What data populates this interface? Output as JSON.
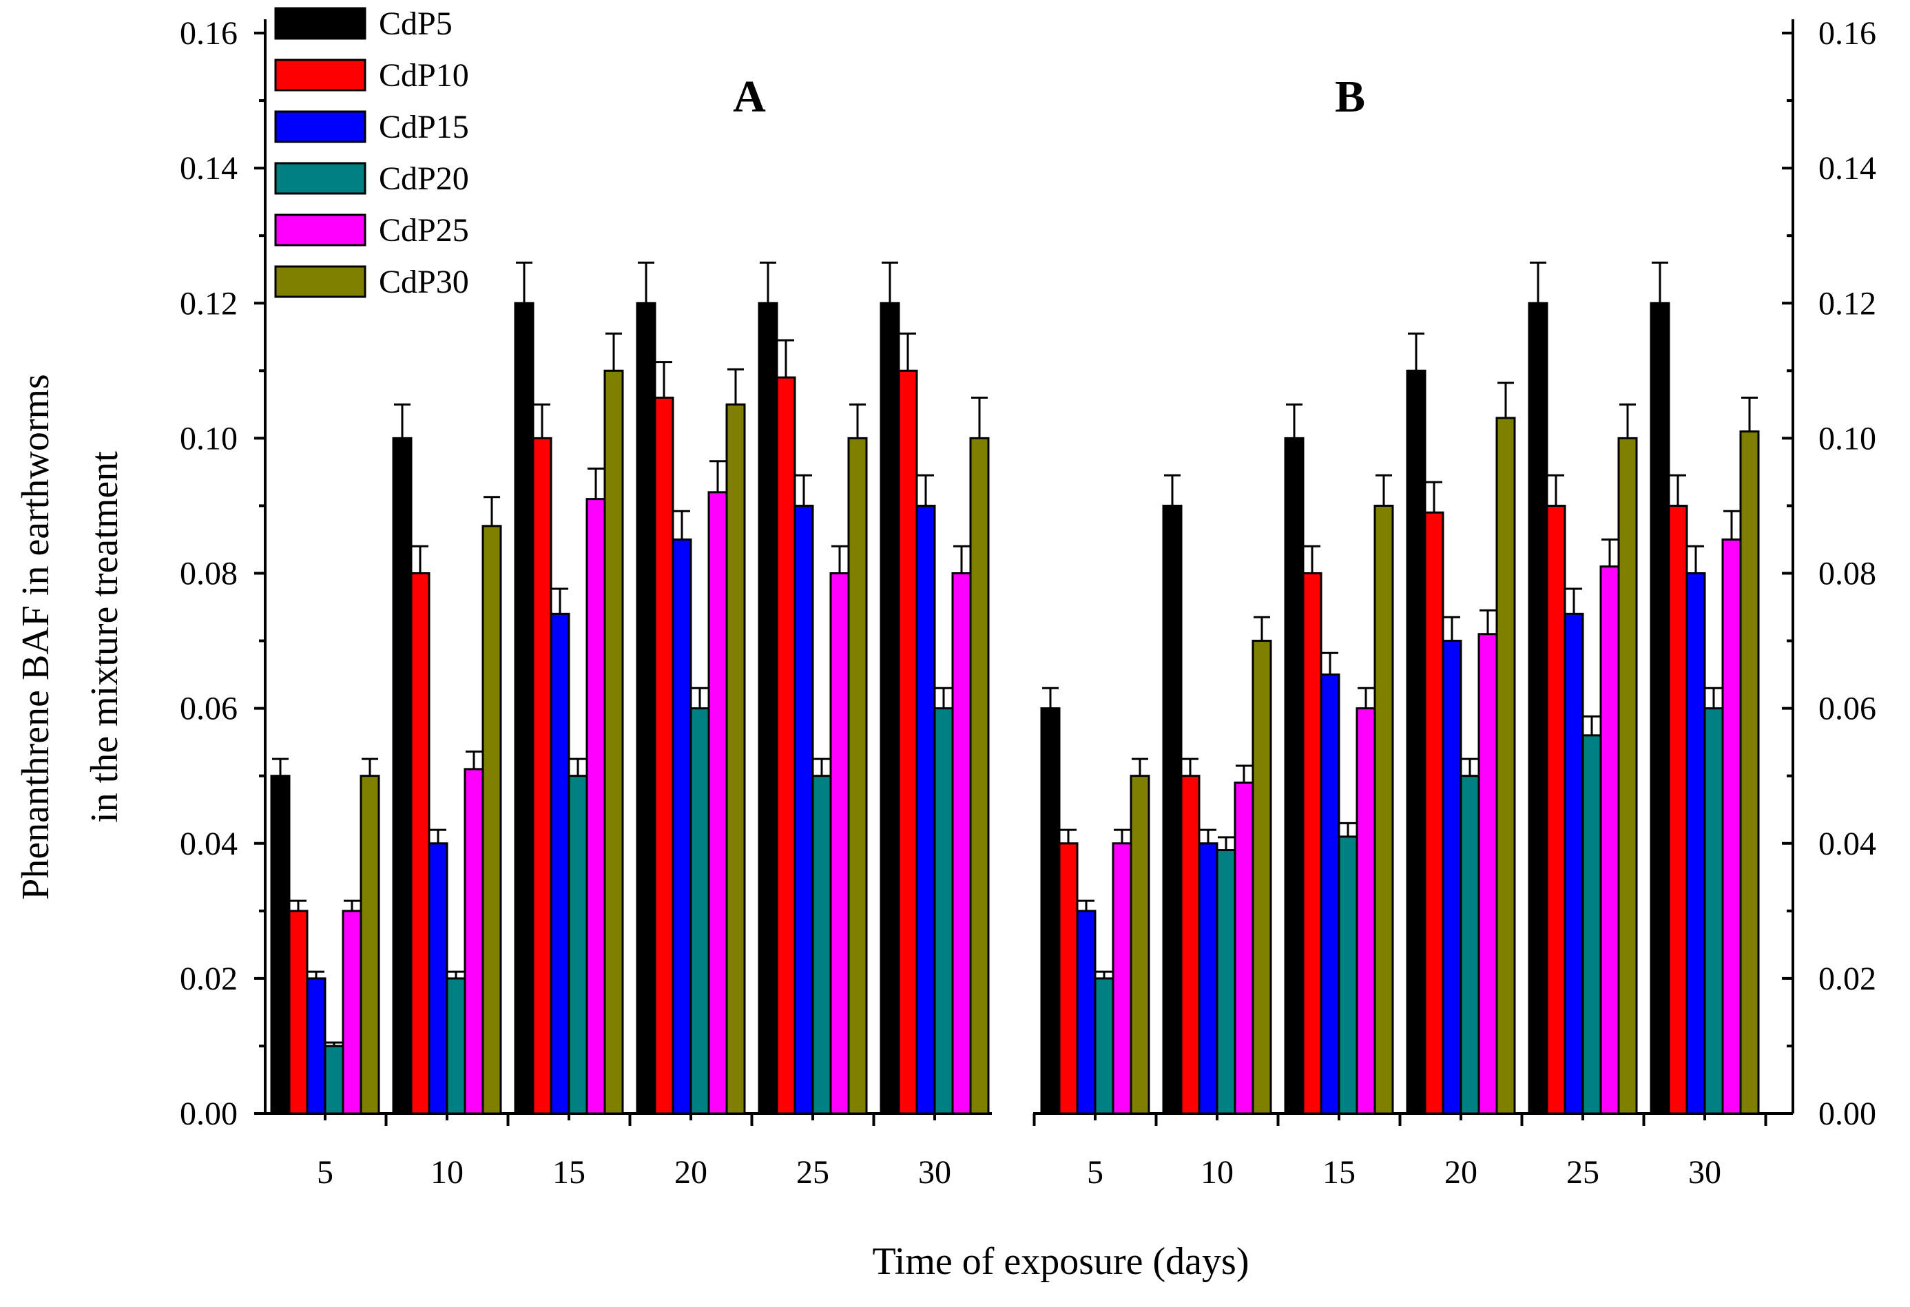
{
  "chart_data": {
    "type": "bar",
    "ylabel_line1": "Phenanthrene BAF in earthworms",
    "ylabel_line2": "in the mixture treatment",
    "xlabel": "Time of exposure (days)",
    "ylim": [
      0,
      0.16
    ],
    "yticks": [
      "0.00",
      "0.02",
      "0.04",
      "0.06",
      "0.08",
      "0.10",
      "0.12",
      "0.14",
      "0.16"
    ],
    "categories": [
      "5",
      "10",
      "15",
      "20",
      "25",
      "30"
    ],
    "legend": [
      {
        "name": "CdP5",
        "color": "#000000"
      },
      {
        "name": "CdP10",
        "color": "#ff0000"
      },
      {
        "name": "CdP15",
        "color": "#0000ff"
      },
      {
        "name": "CdP20",
        "color": "#008080"
      },
      {
        "name": "CdP25",
        "color": "#ff00ff"
      },
      {
        "name": "CdP30",
        "color": "#808000"
      }
    ],
    "panels": [
      {
        "label": "A",
        "series": [
          {
            "name": "CdP5",
            "values": [
              0.05,
              0.1,
              0.12,
              0.12,
              0.12,
              0.12
            ],
            "errors": [
              0.0025,
              0.005,
              0.006,
              0.006,
              0.006,
              0.006
            ]
          },
          {
            "name": "CdP10",
            "values": [
              0.03,
              0.08,
              0.1,
              0.106,
              0.109,
              0.11
            ],
            "errors": [
              0.0015,
              0.004,
              0.005,
              0.0053,
              0.0055,
              0.0055
            ]
          },
          {
            "name": "CdP15",
            "values": [
              0.02,
              0.04,
              0.074,
              0.085,
              0.09,
              0.09
            ],
            "errors": [
              0.001,
              0.002,
              0.0037,
              0.0042,
              0.0045,
              0.0045
            ]
          },
          {
            "name": "CdP20",
            "values": [
              0.01,
              0.02,
              0.05,
              0.06,
              0.05,
              0.06
            ],
            "errors": [
              0.0005,
              0.001,
              0.0025,
              0.003,
              0.0025,
              0.003
            ]
          },
          {
            "name": "CdP25",
            "values": [
              0.03,
              0.051,
              0.091,
              0.092,
              0.08,
              0.08
            ],
            "errors": [
              0.0015,
              0.0026,
              0.0045,
              0.0046,
              0.004,
              0.004
            ]
          },
          {
            "name": "CdP30",
            "values": [
              0.05,
              0.087,
              0.11,
              0.105,
              0.1,
              0.1
            ],
            "errors": [
              0.0025,
              0.0043,
              0.0055,
              0.0052,
              0.005,
              0.006
            ]
          }
        ]
      },
      {
        "label": "B",
        "series": [
          {
            "name": "CdP5",
            "values": [
              0.06,
              0.09,
              0.1,
              0.11,
              0.12,
              0.12
            ],
            "errors": [
              0.003,
              0.0045,
              0.005,
              0.0055,
              0.006,
              0.006
            ]
          },
          {
            "name": "CdP10",
            "values": [
              0.04,
              0.05,
              0.08,
              0.089,
              0.09,
              0.09
            ],
            "errors": [
              0.002,
              0.0025,
              0.004,
              0.0045,
              0.0045,
              0.0045
            ]
          },
          {
            "name": "CdP15",
            "values": [
              0.03,
              0.04,
              0.065,
              0.07,
              0.074,
              0.08
            ],
            "errors": [
              0.0015,
              0.002,
              0.0032,
              0.0035,
              0.0037,
              0.004
            ]
          },
          {
            "name": "CdP20",
            "values": [
              0.02,
              0.039,
              0.041,
              0.05,
              0.056,
              0.06
            ],
            "errors": [
              0.001,
              0.0019,
              0.002,
              0.0025,
              0.0028,
              0.003
            ]
          },
          {
            "name": "CdP25",
            "values": [
              0.04,
              0.049,
              0.06,
              0.071,
              0.081,
              0.085
            ],
            "errors": [
              0.002,
              0.0025,
              0.003,
              0.0035,
              0.004,
              0.0042
            ]
          },
          {
            "name": "CdP30",
            "values": [
              0.05,
              0.07,
              0.09,
              0.103,
              0.1,
              0.101
            ],
            "errors": [
              0.0025,
              0.0035,
              0.0045,
              0.0052,
              0.005,
              0.005
            ]
          }
        ]
      }
    ]
  }
}
